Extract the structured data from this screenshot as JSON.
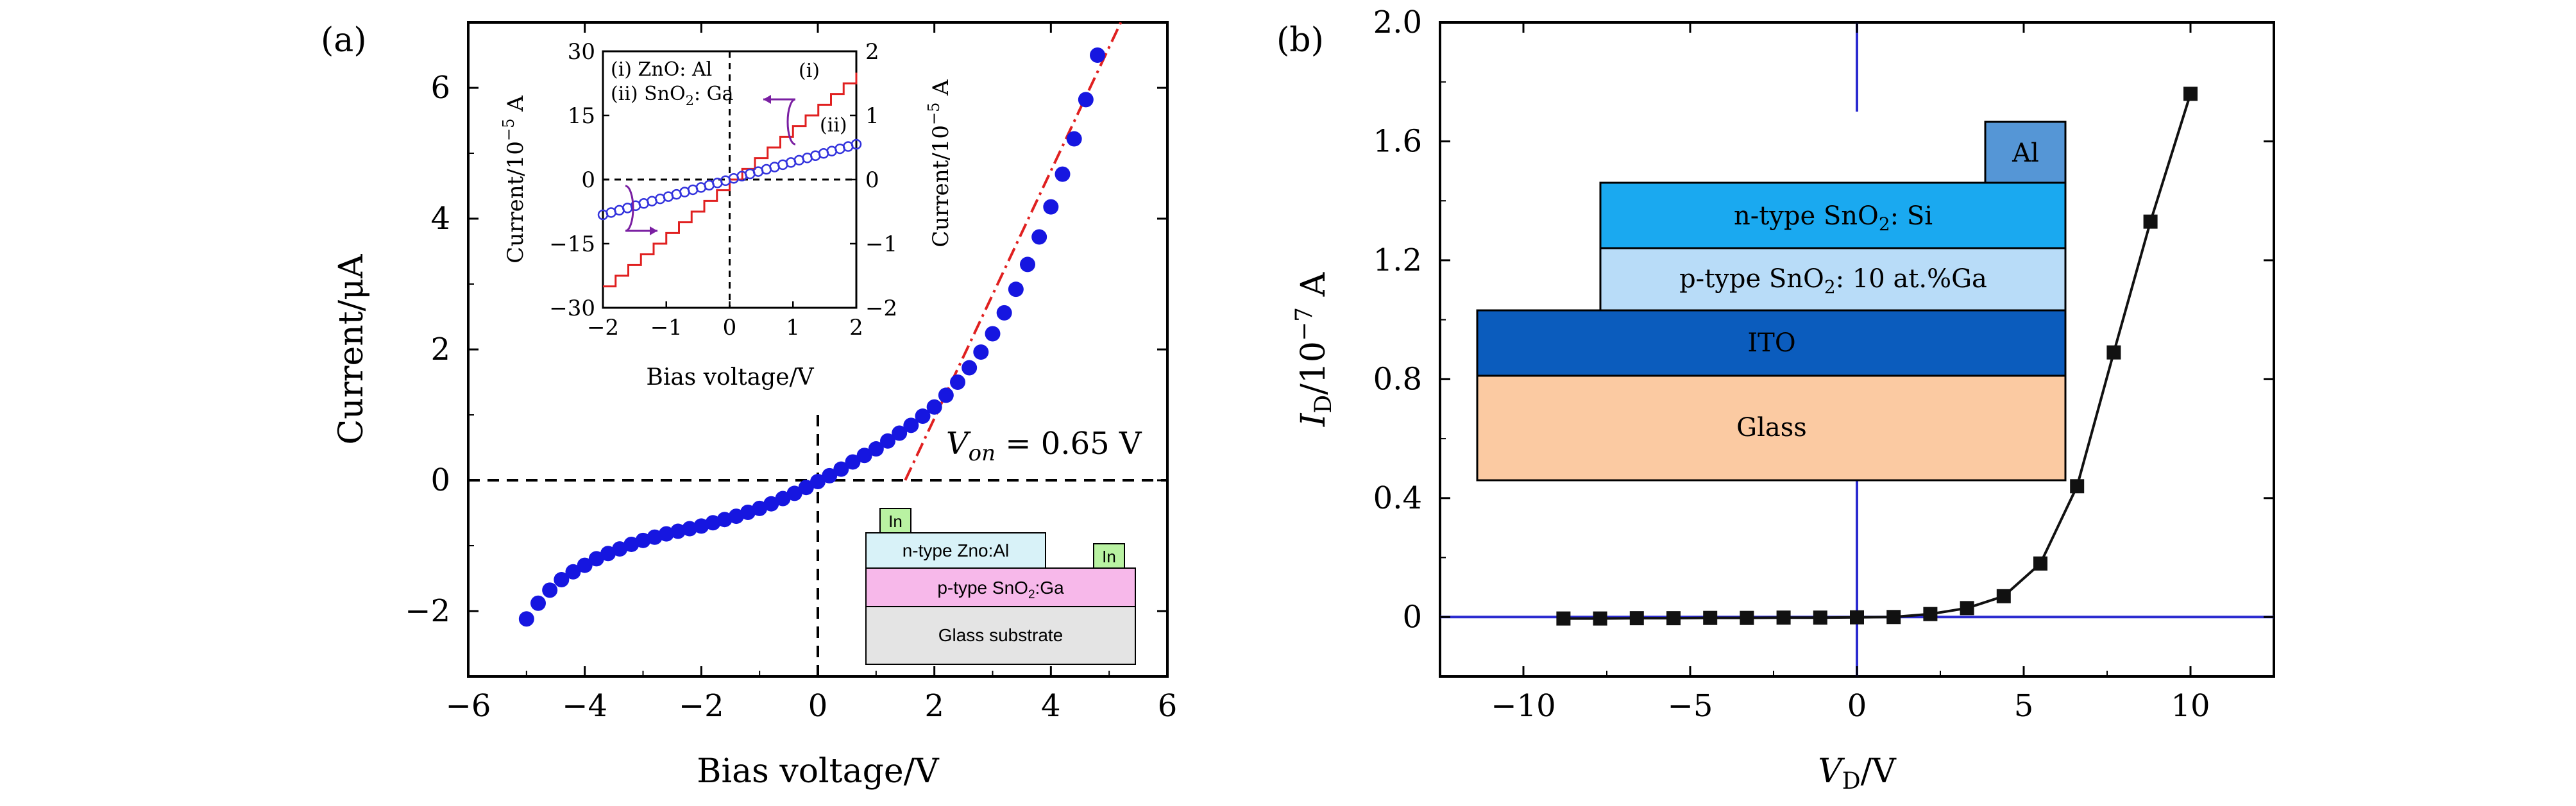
{
  "chart_data": [
    {
      "panel_label": "(a)",
      "type": "scatter",
      "xlabel": "Bias voltage/V",
      "ylabel": "Current/μA",
      "xlim": [
        -6,
        6
      ],
      "ylim": [
        -3,
        7
      ],
      "xticks": [
        -6,
        -4,
        -2,
        0,
        2,
        4,
        6
      ],
      "yticks": [
        -2,
        0,
        2,
        4,
        6
      ],
      "tick_labels_x": [
        "−6",
        "−4",
        "−2",
        "0",
        "2",
        "4",
        "6"
      ],
      "tick_labels_y": [
        "−2",
        "0",
        "2",
        "4",
        "6"
      ],
      "grid": false,
      "series": [
        {
          "color": "#1616e0",
          "marker": "circle",
          "x": [
            -5.0,
            -4.8,
            -4.6,
            -4.4,
            -4.2,
            -4.0,
            -3.8,
            -3.6,
            -3.4,
            -3.2,
            -3.0,
            -2.8,
            -2.6,
            -2.4,
            -2.2,
            -2.0,
            -1.8,
            -1.6,
            -1.4,
            -1.2,
            -1.0,
            -0.8,
            -0.6,
            -0.4,
            -0.2,
            0.0,
            0.2,
            0.4,
            0.6,
            0.8,
            1.0,
            1.2,
            1.4,
            1.6,
            1.8,
            2.0,
            2.2,
            2.4,
            2.6,
            2.8,
            3.0,
            3.2,
            3.4,
            3.6,
            3.8,
            4.0,
            4.2,
            4.4,
            4.6,
            4.8
          ],
          "y": [
            -2.12,
            -1.88,
            -1.68,
            -1.52,
            -1.4,
            -1.3,
            -1.2,
            -1.12,
            -1.05,
            -0.98,
            -0.92,
            -0.87,
            -0.82,
            -0.78,
            -0.74,
            -0.7,
            -0.65,
            -0.6,
            -0.55,
            -0.49,
            -0.43,
            -0.36,
            -0.28,
            -0.2,
            -0.11,
            -0.02,
            0.07,
            0.17,
            0.28,
            0.38,
            0.48,
            0.6,
            0.72,
            0.84,
            0.98,
            1.12,
            1.3,
            1.5,
            1.72,
            1.96,
            2.24,
            2.56,
            2.92,
            3.3,
            3.72,
            4.18,
            4.68,
            5.22,
            5.82,
            6.5
          ]
        }
      ],
      "fit_line": {
        "color": "#e02020",
        "style": "dash-dot",
        "x": [
          1.5,
          5.2
        ],
        "y": [
          0.0,
          7.0
        ]
      },
      "reference_lines": {
        "horizontal_y": 0,
        "vertical_x": 0,
        "style": "dashed"
      },
      "annotation": {
        "label": "V",
        "subscript": "on",
        "value": " = 0.65 V"
      },
      "inset_plot": {
        "xlabel": "Bias voltage/V",
        "ylabel_left": "Current/10",
        "ylabel_left_exp": "−5",
        "ylabel_left_unit": " A",
        "ylabel_right": "Current/10",
        "ylabel_right_exp": "−5",
        "ylabel_right_unit": " A",
        "xlim": [
          -2,
          2
        ],
        "ylim_left": [
          -30,
          30
        ],
        "ylim_right": [
          -2,
          2
        ],
        "tick_labels_x": [
          "−2",
          "−1",
          "0",
          "1",
          "2"
        ],
        "tick_labels_left": [
          "30",
          "15",
          "0",
          "−15",
          "−30"
        ],
        "tick_labels_right": [
          "2",
          "1",
          "0",
          "−1",
          "−2"
        ],
        "legend": [
          "(i) ZnO: Al",
          "(ii) SnO",
          "2",
          ": Ga"
        ],
        "curve_labels": [
          "(i)",
          "(ii)"
        ],
        "series": [
          {
            "name": "(i)",
            "axis": "left",
            "style": "staircase",
            "color": "#e02020",
            "x_range": [
              -2,
              2
            ],
            "y_range": [
              -25,
              25
            ],
            "steps": 20
          },
          {
            "name": "(ii)",
            "axis": "right",
            "style": "open-circle",
            "color": "#3333dd",
            "x_range": [
              -2,
              2
            ],
            "y_range": [
              -0.55,
              0.55
            ],
            "points": 32
          }
        ]
      },
      "device_schematic": {
        "contact_left": "In",
        "contact_right": "In",
        "layer_n": "n-type Zno:Al",
        "layer_p_prefix": "p-type SnO",
        "layer_p_sub": "2",
        "layer_p_suffix": ":Ga",
        "substrate": "Glass substrate",
        "colors": {
          "contact": "#b9f2a2",
          "n_layer": "#d8f2f8",
          "p_layer": "#f7b8ea",
          "substrate": "#e4e4e4"
        }
      }
    },
    {
      "panel_label": "(b)",
      "type": "line",
      "xlabel": "V",
      "xlabel_sub": "D",
      "xlabel_unit": "/V",
      "ylabel": "I",
      "ylabel_sub": "D",
      "ylabel_unit": "/10",
      "ylabel_exp": "−7",
      "ylabel_tail": " A",
      "xlim": [
        -12.5,
        12.5
      ],
      "ylim": [
        -0.2,
        2.0
      ],
      "tick_labels_x": [
        "−10",
        "−5",
        "0",
        "5",
        "10"
      ],
      "tick_labels_y": [
        "0",
        "0.4",
        "0.8",
        "1.2",
        "1.6",
        "2.0"
      ],
      "grid": false,
      "series": [
        {
          "color": "#111111",
          "marker": "square",
          "x": [
            -8.8,
            -7.7,
            -6.6,
            -5.5,
            -4.4,
            -3.3,
            -2.2,
            -1.1,
            0.0,
            1.1,
            2.2,
            3.3,
            4.4,
            5.5,
            6.6,
            7.7,
            8.8,
            10.0
          ],
          "y": [
            -0.005,
            -0.005,
            -0.004,
            -0.004,
            -0.003,
            -0.003,
            -0.002,
            -0.002,
            -0.001,
            0.0,
            0.01,
            0.03,
            0.07,
            0.18,
            0.44,
            0.89,
            1.33,
            1.76
          ]
        }
      ],
      "reference_lines": {
        "horizontal_y": 0,
        "vertical_x": 0,
        "color": "#2b2bd0"
      },
      "device_schematic": {
        "layer_top": "Al",
        "layer_n_prefix": "n-type SnO",
        "layer_n_sub": "2",
        "layer_n_suffix": ": Si",
        "layer_p_prefix": "p-type SnO",
        "layer_p_sub": "2",
        "layer_p_suffix": ": 10 at.%Ga",
        "layer_ito": "ITO",
        "layer_glass": "Glass",
        "colors": {
          "al": "#5596d6",
          "n_layer": "#1aa9f0",
          "p_layer": "#b8dcf8",
          "ito": "#0b5cbd",
          "glass": "#fbcaa2"
        }
      }
    }
  ]
}
